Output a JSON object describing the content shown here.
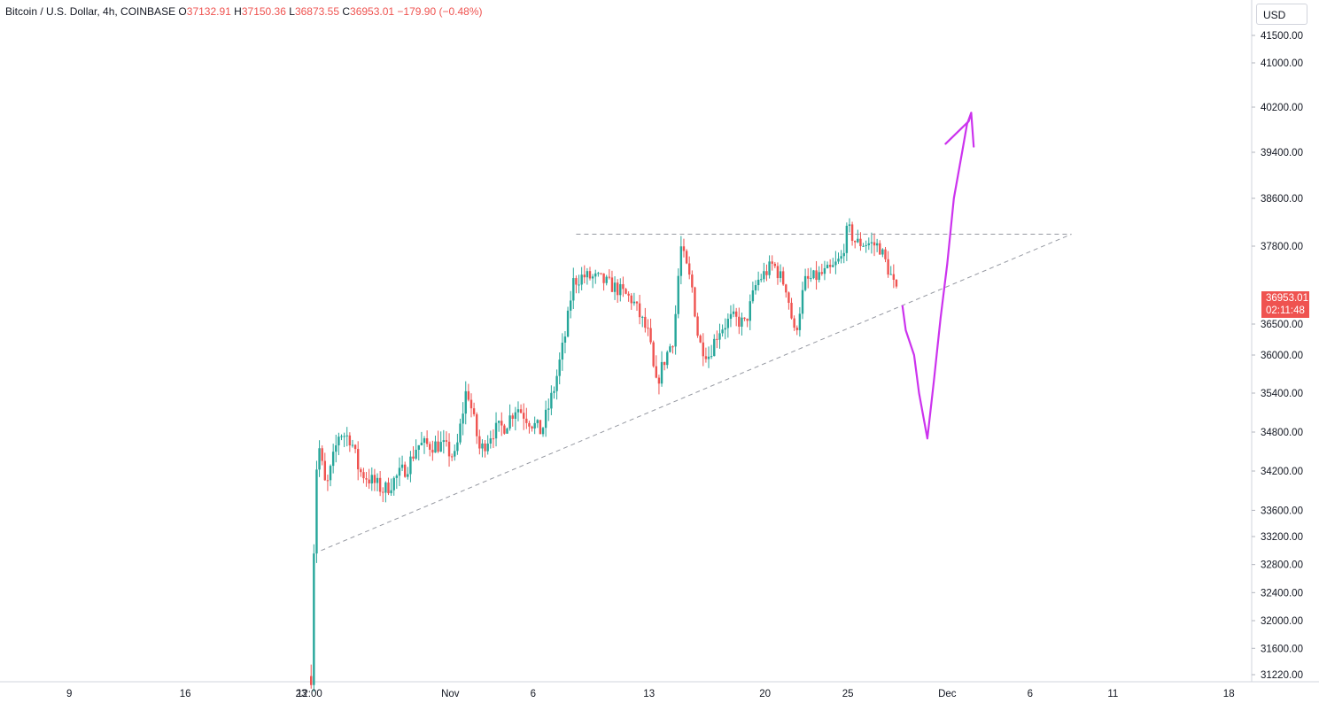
{
  "legend": {
    "symbol": "Bitcoin / U.S. Dollar, 4h, COINBASE",
    "open_label": "O",
    "open": "37132.91",
    "high_label": "H",
    "high": "37150.36",
    "low_label": "L",
    "low": "36873.55",
    "close_label": "C",
    "close": "36953.01",
    "change": "−179.90 (−0.48%)"
  },
  "currency": "USD",
  "last_price": {
    "price": "36953.01",
    "countdown": "02:11:48"
  },
  "colors": {
    "up": "#26a69a",
    "down": "#ef5350",
    "drawing": "#cc33ee",
    "trendline": "#9598a1"
  },
  "chart_data": {
    "type": "candlestick",
    "y_axis": {
      "range": [
        31100,
        42200
      ],
      "ticks": [
        {
          "value": 31220,
          "label": "31220.00"
        },
        {
          "value": 31600,
          "label": "31600.00"
        },
        {
          "value": 32000,
          "label": "32000.00"
        },
        {
          "value": 32400,
          "label": "32400.00"
        },
        {
          "value": 32800,
          "label": "32800.00"
        },
        {
          "value": 33200,
          "label": "33200.00"
        },
        {
          "value": 33600,
          "label": "33600.00"
        },
        {
          "value": 34200,
          "label": "34200.00"
        },
        {
          "value": 34800,
          "label": "34800.00"
        },
        {
          "value": 35400,
          "label": "35400.00"
        },
        {
          "value": 36000,
          "label": "36000.00"
        },
        {
          "value": 36500,
          "label": "36500.00"
        },
        {
          "value": 37800,
          "label": "37800.00"
        },
        {
          "value": 38600,
          "label": "38600.00"
        },
        {
          "value": 39400,
          "label": "39400.00"
        },
        {
          "value": 40200,
          "label": "40200.00"
        },
        {
          "value": 41000,
          "label": "41000.00"
        },
        {
          "value": 41500,
          "label": "41500.00"
        }
      ]
    },
    "x_axis": {
      "ticks": [
        {
          "day": -14,
          "label": "9"
        },
        {
          "day": -7,
          "label": "16"
        },
        {
          "day": 0,
          "label": "23"
        },
        {
          "day": 0.5,
          "label": "12:00"
        },
        {
          "day": 9,
          "label": "Nov"
        },
        {
          "day": 14,
          "label": "6"
        },
        {
          "day": 21,
          "label": "13"
        },
        {
          "day": 28,
          "label": "20"
        },
        {
          "day": 33,
          "label": "25"
        },
        {
          "day": 39,
          "label": "Dec"
        },
        {
          "day": 44,
          "label": "6"
        },
        {
          "day": 49,
          "label": "11"
        },
        {
          "day": 56,
          "label": "18"
        }
      ]
    },
    "ohlc_waypoints": [
      {
        "day": 0.6,
        "price": 31200
      },
      {
        "day": 0.8,
        "price": 33400
      },
      {
        "day": 1.0,
        "price": 34700
      },
      {
        "day": 1.5,
        "price": 33900
      },
      {
        "day": 2.3,
        "price": 34800
      },
      {
        "day": 3.0,
        "price": 34700
      },
      {
        "day": 3.5,
        "price": 34200
      },
      {
        "day": 5.0,
        "price": 33900
      },
      {
        "day": 6.5,
        "price": 34300
      },
      {
        "day": 7.0,
        "price": 34600
      },
      {
        "day": 8.5,
        "price": 34600
      },
      {
        "day": 9.3,
        "price": 34400
      },
      {
        "day": 10.0,
        "price": 35500
      },
      {
        "day": 10.8,
        "price": 34500
      },
      {
        "day": 11.5,
        "price": 34800
      },
      {
        "day": 12.3,
        "price": 34900
      },
      {
        "day": 13.0,
        "price": 35200
      },
      {
        "day": 13.7,
        "price": 35000
      },
      {
        "day": 14.5,
        "price": 34800
      },
      {
        "day": 15.3,
        "price": 35500
      },
      {
        "day": 16.0,
        "price": 36400
      },
      {
        "day": 16.4,
        "price": 37200
      },
      {
        "day": 17.0,
        "price": 37300
      },
      {
        "day": 18.0,
        "price": 37250
      },
      {
        "day": 19.0,
        "price": 37100
      },
      {
        "day": 20.0,
        "price": 36900
      },
      {
        "day": 21.0,
        "price": 36300
      },
      {
        "day": 21.4,
        "price": 35500
      },
      {
        "day": 21.9,
        "price": 35900
      },
      {
        "day": 22.5,
        "price": 36300
      },
      {
        "day": 22.9,
        "price": 37800
      },
      {
        "day": 23.6,
        "price": 37100
      },
      {
        "day": 24.0,
        "price": 36200
      },
      {
        "day": 24.6,
        "price": 36000
      },
      {
        "day": 25.2,
        "price": 36400
      },
      {
        "day": 26.0,
        "price": 36600
      },
      {
        "day": 26.8,
        "price": 36500
      },
      {
        "day": 27.5,
        "price": 37200
      },
      {
        "day": 28.5,
        "price": 37500
      },
      {
        "day": 29.3,
        "price": 37100
      },
      {
        "day": 29.8,
        "price": 36300
      },
      {
        "day": 30.4,
        "price": 37200
      },
      {
        "day": 31.2,
        "price": 37300
      },
      {
        "day": 32.0,
        "price": 37400
      },
      {
        "day": 32.6,
        "price": 37600
      },
      {
        "day": 33.0,
        "price": 38100
      },
      {
        "day": 33.5,
        "price": 37850
      },
      {
        "day": 34.2,
        "price": 37850
      },
      {
        "day": 34.9,
        "price": 37800
      },
      {
        "day": 35.6,
        "price": 37300
      },
      {
        "day": 36.0,
        "price": 36950
      }
    ],
    "resistance_line": {
      "from": {
        "day": 16.6,
        "price": 38000
      },
      "to": {
        "day": 46.5,
        "price": 38000
      }
    },
    "support_line": {
      "from": {
        "day": 1.2,
        "price": 33000
      },
      "to": {
        "day": 46.5,
        "price": 38000
      }
    },
    "projection_path": [
      {
        "day": 36.3,
        "price": 36800
      },
      {
        "day": 36.5,
        "price": 36400
      },
      {
        "day": 37.0,
        "price": 36000
      },
      {
        "day": 37.3,
        "price": 35400
      },
      {
        "day": 37.8,
        "price": 34700
      },
      {
        "day": 38.2,
        "price": 35600
      },
      {
        "day": 38.6,
        "price": 36600
      },
      {
        "day": 39.0,
        "price": 37500
      },
      {
        "day": 39.4,
        "price": 38600
      },
      {
        "day": 39.9,
        "price": 39400
      },
      {
        "day": 40.2,
        "price": 39900
      },
      {
        "day": 40.45,
        "price": 40100
      }
    ],
    "projection_arrow_head": [
      {
        "day": 38.9,
        "price": 39550
      },
      {
        "day": 40.3,
        "price": 39950
      },
      {
        "day": 40.45,
        "price": 40100
      },
      {
        "day": 40.6,
        "price": 39500
      }
    ]
  }
}
